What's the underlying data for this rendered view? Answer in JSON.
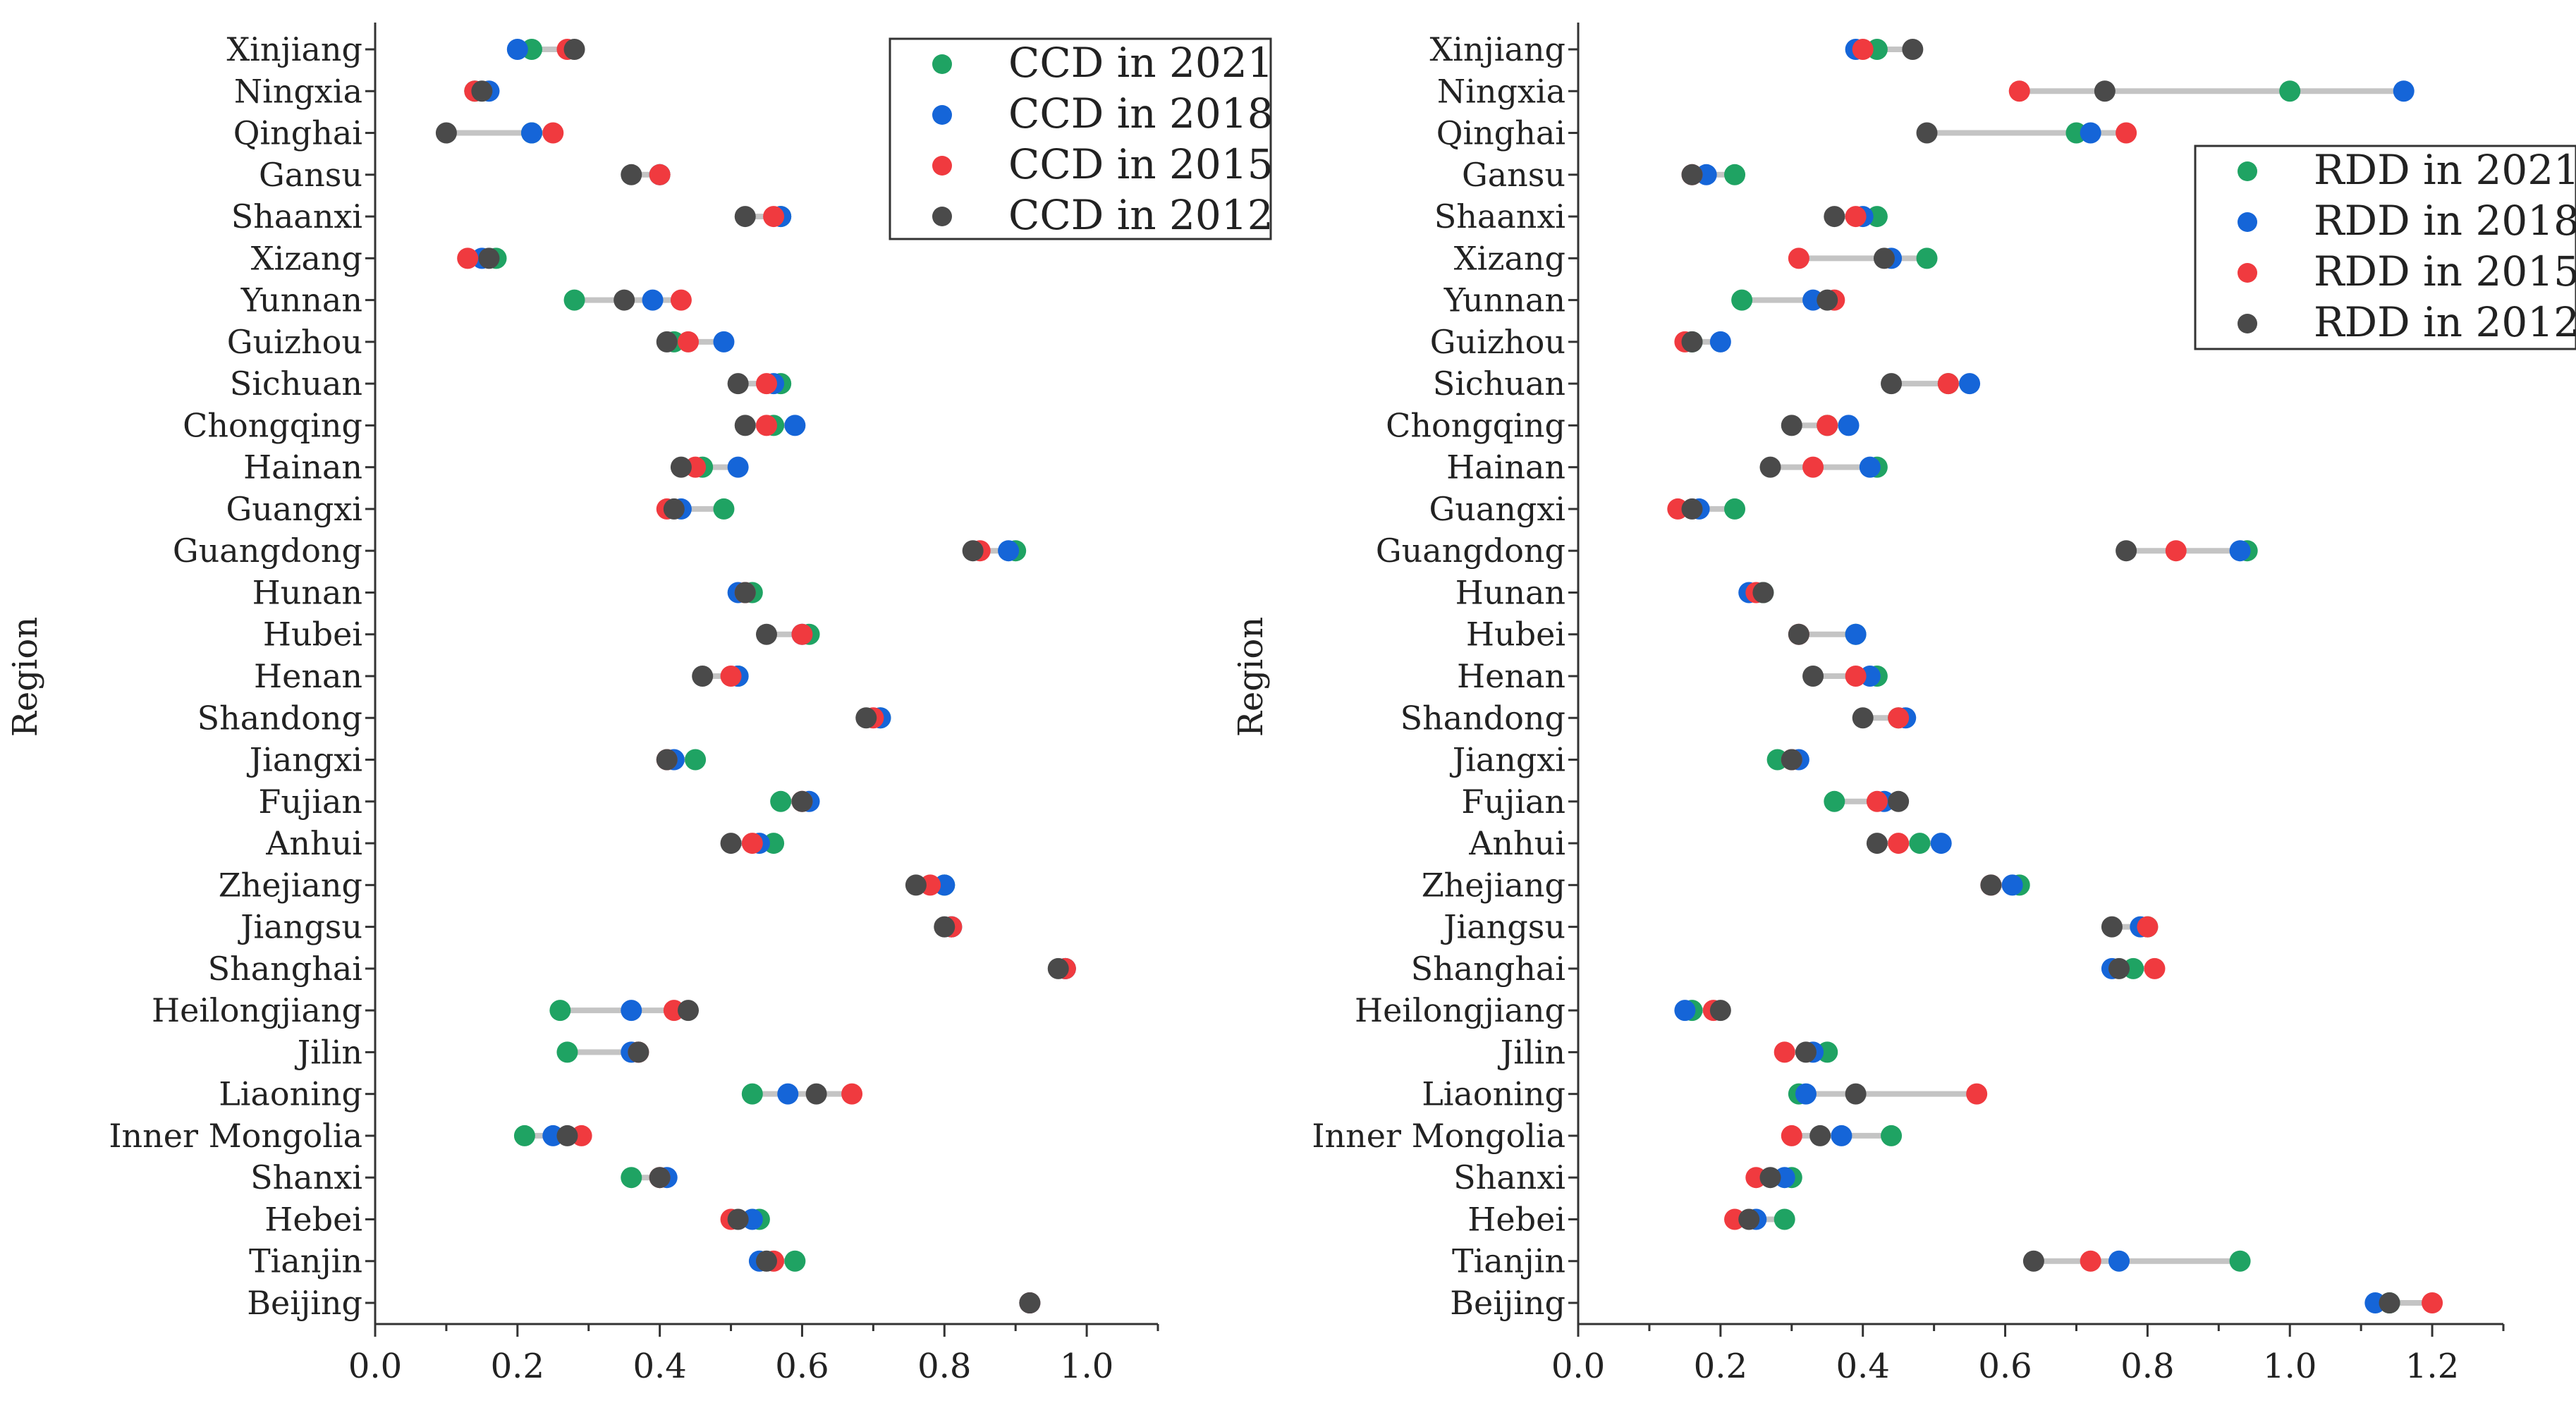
{
  "colors": {
    "y2021": "#1fa363",
    "y2018": "#1565d8",
    "y2015": "#f03a3f",
    "y2012": "#4a4a4a",
    "range": "#c4c4c4"
  },
  "chart_data": [
    {
      "id": "ccd",
      "type": "dumbbell",
      "ylabel": "Region",
      "xlabel": "",
      "xlim": [
        0,
        1.1
      ],
      "xticks": [
        "0.0",
        "0.2",
        "0.4",
        "0.6",
        "0.8",
        "1.0"
      ],
      "xtick_values": [
        0,
        0.2,
        0.4,
        0.6,
        0.8,
        1.0
      ],
      "legend_position": "top-right",
      "categories": [
        "Xinjiang",
        "Ningxia",
        "Qinghai",
        "Gansu",
        "Shaanxi",
        "Xizang",
        "Yunnan",
        "Guizhou",
        "Sichuan",
        "Chongqing",
        "Hainan",
        "Guangxi",
        "Guangdong",
        "Hunan",
        "Hubei",
        "Henan",
        "Shandong",
        "Jiangxi",
        "Fujian",
        "Anhui",
        "Zhejiang",
        "Jiangsu",
        "Shanghai",
        "Heilongjiang",
        "Jilin",
        "Liaoning",
        "Inner Mongolia",
        "Shanxi",
        "Hebei",
        "Tianjin",
        "Beijing"
      ],
      "series": [
        {
          "name": "CCD in 2012",
          "color_key": "y2012",
          "values": [
            0.28,
            0.15,
            0.1,
            0.36,
            0.52,
            0.16,
            0.35,
            0.41,
            0.51,
            0.52,
            0.43,
            0.42,
            0.84,
            0.52,
            0.55,
            0.46,
            0.69,
            0.41,
            0.6,
            0.5,
            0.76,
            0.8,
            0.96,
            0.44,
            0.37,
            0.62,
            0.27,
            0.4,
            0.51,
            0.55,
            0.92
          ]
        },
        {
          "name": "CCD in 2015",
          "color_key": "y2015",
          "values": [
            0.27,
            0.14,
            0.25,
            0.4,
            0.56,
            0.13,
            0.43,
            0.44,
            0.55,
            0.55,
            0.45,
            0.41,
            0.85,
            0.52,
            0.6,
            0.5,
            0.7,
            0.41,
            0.6,
            0.53,
            0.78,
            0.81,
            0.97,
            0.42,
            0.37,
            0.67,
            0.29,
            0.4,
            0.5,
            0.56,
            0.92
          ]
        },
        {
          "name": "CCD in 2018",
          "color_key": "y2018",
          "values": [
            0.2,
            0.16,
            0.22,
            0.4,
            0.57,
            0.15,
            0.39,
            0.49,
            0.56,
            0.59,
            0.51,
            0.43,
            0.89,
            0.51,
            0.6,
            0.51,
            0.71,
            0.42,
            0.61,
            0.54,
            0.8,
            0.81,
            0.97,
            0.36,
            0.36,
            0.58,
            0.25,
            0.41,
            0.53,
            0.54,
            0.92
          ]
        },
        {
          "name": "CCD in 2021",
          "color_key": "y2021",
          "values": [
            0.22,
            0.14,
            0.22,
            0.4,
            0.57,
            0.17,
            0.28,
            0.42,
            0.57,
            0.56,
            0.46,
            0.49,
            0.9,
            0.53,
            0.61,
            0.51,
            0.71,
            0.45,
            0.57,
            0.56,
            0.8,
            0.81,
            0.97,
            0.26,
            0.27,
            0.53,
            0.21,
            0.36,
            0.54,
            0.59,
            0.92
          ]
        }
      ]
    },
    {
      "id": "rdd",
      "type": "dumbbell",
      "ylabel": "Region",
      "xlabel": "",
      "xlim": [
        0,
        1.3
      ],
      "xticks": [
        "0.0",
        "0.2",
        "0.4",
        "0.6",
        "0.8",
        "1.0",
        "1.2"
      ],
      "xtick_values": [
        0,
        0.2,
        0.4,
        0.6,
        0.8,
        1.0,
        1.2
      ],
      "legend_position": "top-right",
      "categories": [
        "Xinjiang",
        "Ningxia",
        "Qinghai",
        "Gansu",
        "Shaanxi",
        "Xizang",
        "Yunnan",
        "Guizhou",
        "Sichuan",
        "Chongqing",
        "Hainan",
        "Guangxi",
        "Guangdong",
        "Hunan",
        "Hubei",
        "Henan",
        "Shandong",
        "Jiangxi",
        "Fujian",
        "Anhui",
        "Zhejiang",
        "Jiangsu",
        "Shanghai",
        "Heilongjiang",
        "Jilin",
        "Liaoning",
        "Inner Mongolia",
        "Shanxi",
        "Hebei",
        "Tianjin",
        "Beijing"
      ],
      "series": [
        {
          "name": "RDD in 2012",
          "color_key": "y2012",
          "values": [
            0.47,
            0.74,
            0.49,
            0.16,
            0.36,
            0.43,
            0.35,
            0.16,
            0.44,
            0.3,
            0.27,
            0.16,
            0.77,
            0.26,
            0.31,
            0.33,
            0.4,
            0.3,
            0.45,
            0.42,
            0.58,
            0.75,
            0.76,
            0.2,
            0.32,
            0.39,
            0.34,
            0.27,
            0.24,
            0.64,
            1.14
          ]
        },
        {
          "name": "RDD in 2015",
          "color_key": "y2015",
          "values": [
            0.4,
            0.62,
            0.77,
            0.16,
            0.39,
            0.31,
            0.36,
            0.15,
            0.52,
            0.35,
            0.33,
            0.14,
            0.84,
            0.25,
            0.31,
            0.39,
            0.45,
            0.3,
            0.42,
            0.45,
            0.58,
            0.8,
            0.81,
            0.19,
            0.29,
            0.56,
            0.3,
            0.25,
            0.22,
            0.72,
            1.2
          ]
        },
        {
          "name": "RDD in 2018",
          "color_key": "y2018",
          "values": [
            0.39,
            1.16,
            0.72,
            0.18,
            0.4,
            0.44,
            0.33,
            0.2,
            0.55,
            0.38,
            0.41,
            0.17,
            0.93,
            0.24,
            0.39,
            0.41,
            0.46,
            0.31,
            0.43,
            0.51,
            0.61,
            0.79,
            0.75,
            0.15,
            0.33,
            0.32,
            0.37,
            0.29,
            0.25,
            0.76,
            1.12
          ]
        },
        {
          "name": "RDD in 2021",
          "color_key": "y2021",
          "values": [
            0.42,
            1.0,
            0.7,
            0.22,
            0.42,
            0.49,
            0.23,
            0.16,
            0.52,
            0.35,
            0.42,
            0.22,
            0.94,
            0.26,
            0.39,
            0.42,
            0.45,
            0.28,
            0.36,
            0.48,
            0.62,
            0.8,
            0.78,
            0.16,
            0.35,
            0.31,
            0.44,
            0.3,
            0.29,
            0.93,
            1.14
          ]
        }
      ]
    }
  ]
}
